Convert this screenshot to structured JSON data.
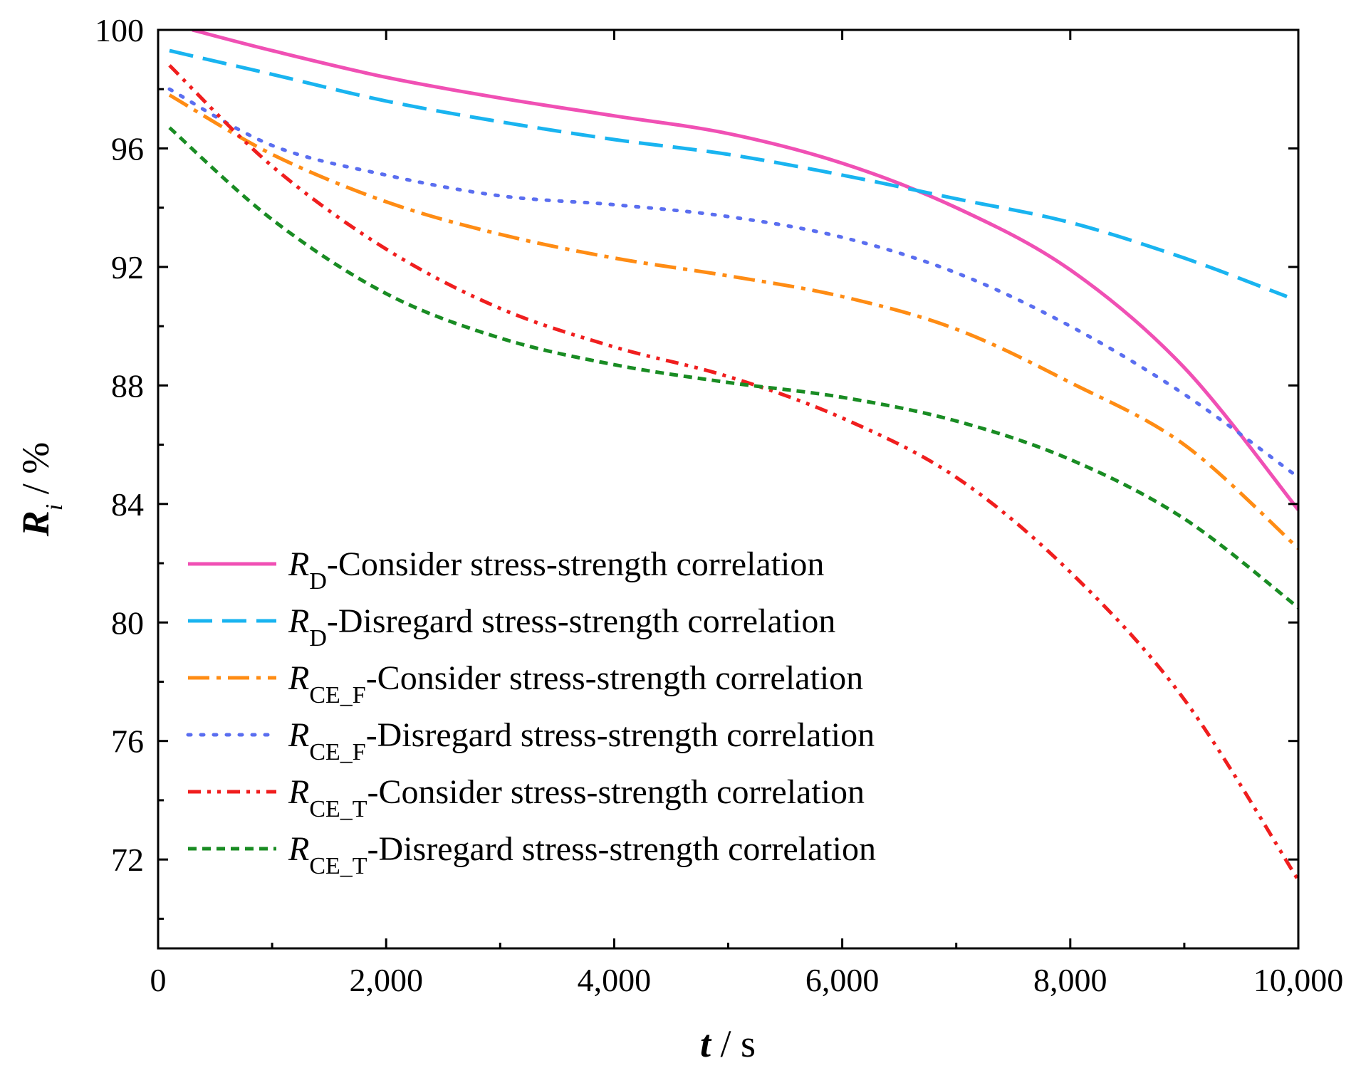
{
  "chart_data": {
    "type": "line",
    "title": "",
    "xlabel": {
      "var": "t",
      "unit": "s"
    },
    "ylabel": {
      "var": "R",
      "sub": "i",
      "unit": "%"
    },
    "xlim": [
      0,
      10000
    ],
    "ylim": [
      69,
      100
    ],
    "xticks": [
      0,
      2000,
      4000,
      6000,
      8000,
      10000
    ],
    "xtick_labels": [
      "0",
      "2,000",
      "4,000",
      "6,000",
      "8,000",
      "10,000"
    ],
    "yticks": [
      72,
      76,
      80,
      84,
      88,
      92,
      96,
      100
    ],
    "ytick_labels": [
      "72",
      "76",
      "80",
      "84",
      "88",
      "92",
      "96",
      "100"
    ],
    "grid": false,
    "legend_position": "bottom-left",
    "series": [
      {
        "id": "rd-consider",
        "sym": "R",
        "sub": "D",
        "text": "-Consider stress-strength correlation",
        "color": "#f050b4",
        "dash": "solid",
        "x": [
          300,
          1000,
          2000,
          3000,
          4000,
          5000,
          6000,
          7000,
          8000,
          9000,
          10000
        ],
        "y": [
          100.0,
          99.3,
          98.4,
          97.7,
          97.1,
          96.5,
          95.5,
          94.0,
          91.9,
          88.6,
          83.8
        ]
      },
      {
        "id": "rd-disregard",
        "sym": "R",
        "sub": "D",
        "text": "-Disregard stress-strength correlation",
        "color": "#19b4f0",
        "dash": "long-dash",
        "x": [
          100,
          1000,
          2000,
          3000,
          4000,
          5000,
          6000,
          7000,
          8000,
          9000,
          9900
        ],
        "y": [
          99.3,
          98.5,
          97.6,
          96.9,
          96.3,
          95.8,
          95.1,
          94.3,
          93.5,
          92.3,
          91.0
        ]
      },
      {
        "id": "rcef-consider",
        "sym": "R",
        "sub": "CE_F",
        "text": "-Consider stress-strength correlation",
        "color": "#ff8c14",
        "dash": "dash-dot",
        "x": [
          100,
          1000,
          2000,
          3000,
          4000,
          5000,
          6000,
          7000,
          8000,
          9000,
          10000
        ],
        "y": [
          97.8,
          95.8,
          94.2,
          93.1,
          92.3,
          91.7,
          91.0,
          89.9,
          88.1,
          86.0,
          82.5
        ]
      },
      {
        "id": "rcef-disregard",
        "sym": "R",
        "sub": "CE_F",
        "text": "-Disregard stress-strength correlation",
        "color": "#5a6ef0",
        "dash": "dot",
        "x": [
          100,
          1000,
          2000,
          3000,
          4000,
          5000,
          6000,
          7000,
          8000,
          9000,
          10000
        ],
        "y": [
          98.0,
          96.1,
          95.1,
          94.4,
          94.1,
          93.7,
          93.0,
          91.8,
          90.0,
          87.7,
          84.9
        ]
      },
      {
        "id": "rcet-consider",
        "sym": "R",
        "sub": "CE_T",
        "text": "-Consider stress-strength correlation",
        "color": "#f01e1e",
        "dash": "dash-dot-dot",
        "x": [
          100,
          1000,
          2000,
          3000,
          4000,
          5000,
          6000,
          7000,
          8000,
          9000,
          10000
        ],
        "y": [
          98.8,
          95.4,
          92.6,
          90.6,
          89.3,
          88.3,
          86.9,
          84.9,
          81.7,
          77.4,
          71.3
        ]
      },
      {
        "id": "rcet-disregard",
        "sym": "R",
        "sub": "CE_T",
        "text": "-Disregard stress-strength correlation",
        "color": "#198c23",
        "dash": "short-dash",
        "x": [
          100,
          1000,
          2000,
          3000,
          4000,
          5000,
          6000,
          7000,
          8000,
          9000,
          10000
        ],
        "y": [
          96.7,
          93.6,
          91.1,
          89.6,
          88.7,
          88.1,
          87.6,
          86.8,
          85.5,
          83.5,
          80.5
        ]
      }
    ]
  }
}
